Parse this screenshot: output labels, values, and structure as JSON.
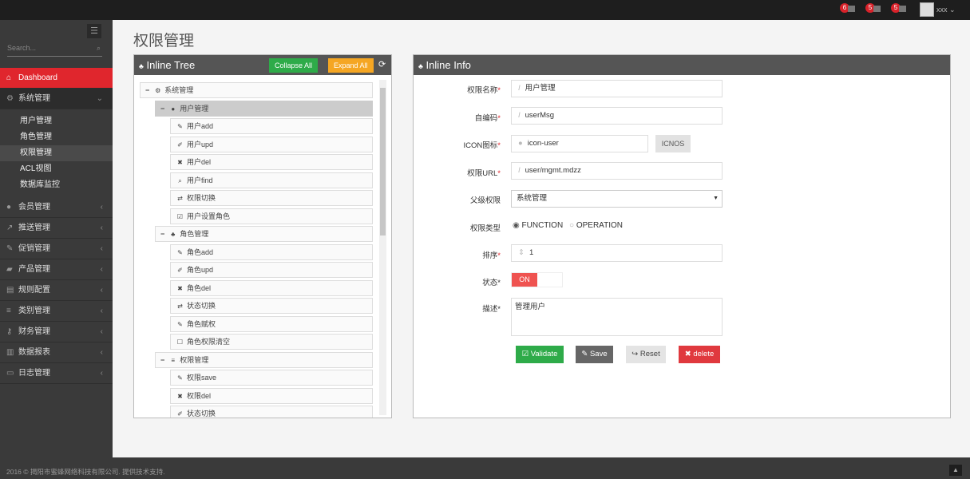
{
  "topbar": {
    "notifications": [
      {
        "count": "6",
        "icon": "bell-icon"
      },
      {
        "count": "5",
        "icon": "envelope-icon"
      },
      {
        "count": "5",
        "icon": "tasks-icon"
      }
    ],
    "username": "xxx"
  },
  "sidebar": {
    "search_placeholder": "Search...",
    "items": [
      {
        "label": "Dashboard",
        "icon": "home-icon",
        "active": true
      },
      {
        "label": "系统管理",
        "icon": "cogs-icon",
        "open": true,
        "children": [
          "用户管理",
          "角色管理",
          "权限管理",
          "ACL视图",
          "数据库监控"
        ],
        "current_child": "权限管理"
      },
      {
        "label": "会员管理",
        "icon": "user-icon"
      },
      {
        "label": "推送管理",
        "icon": "share-icon"
      },
      {
        "label": "促销管理",
        "icon": "pencil-icon"
      },
      {
        "label": "产品管理",
        "icon": "book-icon"
      },
      {
        "label": "规则配置",
        "icon": "list-alt-icon"
      },
      {
        "label": "类别管理",
        "icon": "list-icon"
      },
      {
        "label": "财务管理",
        "icon": "key-icon"
      },
      {
        "label": "数据报表",
        "icon": "bar-chart-icon"
      },
      {
        "label": "日志管理",
        "icon": "credit-card-icon"
      }
    ]
  },
  "page_title": "权限管理",
  "tree_panel": {
    "title": "Inline Tree",
    "collapse_label": "Collapse All",
    "expand_label": "Expand All",
    "nodes": [
      {
        "label": "系统管理",
        "level": 0,
        "icon": "cogs-icon",
        "toggle": "−"
      },
      {
        "label": "用户管理",
        "level": 1,
        "icon": "user-icon",
        "toggle": "−",
        "selected": true
      },
      {
        "label": "用户add",
        "level": 2,
        "icon": "pencil-icon"
      },
      {
        "label": "用户upd",
        "level": 2,
        "icon": "edit-icon"
      },
      {
        "label": "用户del",
        "level": 2,
        "icon": "times-icon"
      },
      {
        "label": "用户find",
        "level": 2,
        "icon": "search-icon"
      },
      {
        "label": "权限切换",
        "level": 2,
        "icon": "retweet-icon"
      },
      {
        "label": "用户设置角色",
        "level": 2,
        "icon": "check-square-icon"
      },
      {
        "label": "角色管理",
        "level": 1,
        "icon": "sitemap-icon",
        "toggle": "−"
      },
      {
        "label": "角色add",
        "level": 2,
        "icon": "pencil-icon"
      },
      {
        "label": "角色upd",
        "level": 2,
        "icon": "edit-icon"
      },
      {
        "label": "角色del",
        "level": 2,
        "icon": "times-icon"
      },
      {
        "label": "状态切换",
        "level": 2,
        "icon": "retweet-icon"
      },
      {
        "label": "角色赋权",
        "level": 2,
        "icon": "pencil-icon"
      },
      {
        "label": "角色权限清空",
        "level": 2,
        "icon": "square-icon"
      },
      {
        "label": "权限管理",
        "level": 1,
        "icon": "list-icon",
        "toggle": "−"
      },
      {
        "label": "权限save",
        "level": 2,
        "icon": "pencil-icon"
      },
      {
        "label": "权限del",
        "level": 2,
        "icon": "times-icon"
      },
      {
        "label": "状态切换",
        "level": 2,
        "icon": "edit-icon"
      }
    ]
  },
  "info_panel": {
    "title": "Inline Info",
    "fields": {
      "name": {
        "label": "权限名称",
        "value": "用户管理"
      },
      "code": {
        "label": "自编码",
        "value": "userMsg"
      },
      "icon": {
        "label": "ICON图标",
        "value": "icon-user",
        "button": "ICNOS"
      },
      "url": {
        "label": "权限URL",
        "value": "user/mgmt.mdzz"
      },
      "parent": {
        "label": "父级权限",
        "value": "系统管理"
      },
      "type": {
        "label": "权限类型",
        "options": [
          "FUNCTION",
          "OPERATION"
        ],
        "selected": "FUNCTION"
      },
      "order": {
        "label": "排序",
        "value": "1"
      },
      "status": {
        "label": "状态",
        "value": "ON"
      },
      "desc": {
        "label": "描述",
        "value": "管理用户"
      }
    },
    "buttons": {
      "validate": "Validate",
      "save": "Save",
      "reset": "Reset",
      "delete": "delete"
    }
  },
  "footer": {
    "text": "2016 © 揭阳市蜜蜂网络科技有限公司. 提供技术支持."
  },
  "colors": {
    "accent": "#e0262d",
    "green": "#2eab49",
    "orange": "#f5a623",
    "dark": "#555555"
  }
}
